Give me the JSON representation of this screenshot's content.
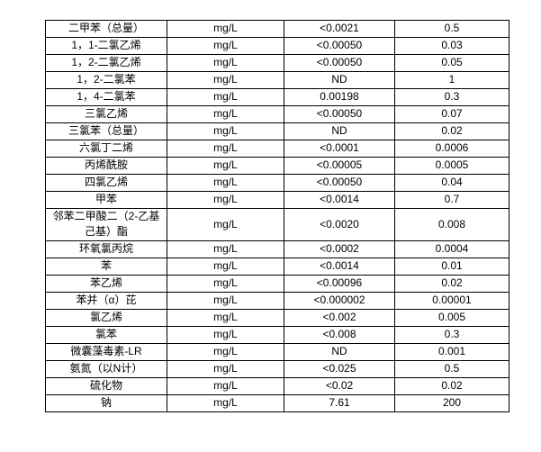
{
  "page": {
    "background_color": "#ffffff",
    "border_color": "#000000",
    "text_color": "#000000"
  },
  "table": {
    "description": "water-quality-parameters-table-fragment",
    "rows": [
      {
        "name": "二甲苯（总量）",
        "unit": "mg/L",
        "measured": "<0.0021",
        "limit": "0.5"
      },
      {
        "name": "1，1-二氯乙烯",
        "unit": "mg/L",
        "measured": "<0.00050",
        "limit": "0.03"
      },
      {
        "name": "1，2-二氯乙烯",
        "unit": "mg/L",
        "measured": "<0.00050",
        "limit": "0.05"
      },
      {
        "name": "1，2-二氯苯",
        "unit": "mg/L",
        "measured": "ND",
        "limit": "1"
      },
      {
        "name": "1，4-二氯苯",
        "unit": "mg/L",
        "measured": "0.00198",
        "limit": "0.3"
      },
      {
        "name": "三氯乙烯",
        "unit": "mg/L",
        "measured": "<0.00050",
        "limit": "0.07"
      },
      {
        "name": "三氯苯（总量）",
        "unit": "mg/L",
        "measured": "ND",
        "limit": "0.02"
      },
      {
        "name": "六氯丁二烯",
        "unit": "mg/L",
        "measured": "<0.0001",
        "limit": "0.0006"
      },
      {
        "name": "丙烯酰胺",
        "unit": "mg/L",
        "measured": "<0.00005",
        "limit": "0.0005"
      },
      {
        "name": "四氯乙烯",
        "unit": "mg/L",
        "measured": "<0.00050",
        "limit": "0.04"
      },
      {
        "name": "甲苯",
        "unit": "mg/L",
        "measured": "<0.0014",
        "limit": "0.7"
      },
      {
        "name": "邻苯二甲酸二（2-乙基己基）酯",
        "unit": "mg/L",
        "measured": "<0.0020",
        "limit": "0.008"
      },
      {
        "name": "环氧氯丙烷",
        "unit": "mg/L",
        "measured": "<0.0002",
        "limit": "0.0004"
      },
      {
        "name": "苯",
        "unit": "mg/L",
        "measured": "<0.0014",
        "limit": "0.01"
      },
      {
        "name": "苯乙烯",
        "unit": "mg/L",
        "measured": "<0.00096",
        "limit": "0.02"
      },
      {
        "name": "苯并（α）芘",
        "unit": "mg/L",
        "measured": "<0.000002",
        "limit": "0.00001"
      },
      {
        "name": "氯乙烯",
        "unit": "mg/L",
        "measured": "<0.002",
        "limit": "0.005"
      },
      {
        "name": "氯苯",
        "unit": "mg/L",
        "measured": "<0.008",
        "limit": "0.3"
      },
      {
        "name": "微囊藻毒素-LR",
        "unit": "mg/L",
        "measured": "ND",
        "limit": "0.001"
      },
      {
        "name": "氨氮（以N计）",
        "unit": "mg/L",
        "measured": "<0.025",
        "limit": "0.5"
      },
      {
        "name": "硫化物",
        "unit": "mg/L",
        "measured": "<0.02",
        "limit": "0.02"
      },
      {
        "name": "钠",
        "unit": "mg/L",
        "measured": "7.61",
        "limit": "200"
      }
    ]
  }
}
